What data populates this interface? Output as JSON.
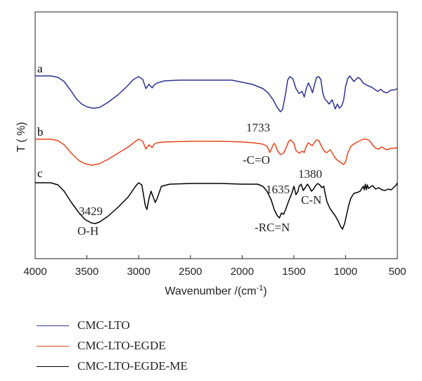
{
  "chart_data": {
    "type": "line",
    "title": "",
    "xlabel": "Wavenumber /(cm",
    "xlabel_sup": "-1",
    "xlabel_close": ")",
    "ylabel": "T ( %)",
    "xlim": [
      4000,
      500
    ],
    "x_reversed": true,
    "x_ticks": [
      4000,
      3500,
      3000,
      2500,
      2000,
      1500,
      1000,
      500
    ],
    "y_ticks_shown": false,
    "grid": false,
    "legend_position": "bottom-left",
    "series": [
      {
        "name": "CMC-LTO",
        "curve_label": "a",
        "color": "#2e3192",
        "baseline": 0,
        "points": [
          [
            4000,
            0
          ],
          [
            3850,
            0
          ],
          [
            3780,
            -2
          ],
          [
            3720,
            -8
          ],
          [
            3650,
            -22
          ],
          [
            3600,
            -33
          ],
          [
            3550,
            -40
          ],
          [
            3500,
            -44
          ],
          [
            3440,
            -46
          ],
          [
            3380,
            -45
          ],
          [
            3300,
            -38
          ],
          [
            3200,
            -27
          ],
          [
            3120,
            -16
          ],
          [
            3050,
            -5
          ],
          [
            3000,
            -1
          ],
          [
            2960,
            -5
          ],
          [
            2930,
            -18
          ],
          [
            2900,
            -12
          ],
          [
            2870,
            -17
          ],
          [
            2850,
            -13
          ],
          [
            2820,
            -10
          ],
          [
            2750,
            -7
          ],
          [
            2600,
            -6
          ],
          [
            2400,
            -6
          ],
          [
            2200,
            -6
          ],
          [
            2100,
            -6
          ],
          [
            2000,
            -9
          ],
          [
            1900,
            -12
          ],
          [
            1800,
            -18
          ],
          [
            1750,
            -24
          ],
          [
            1700,
            -34
          ],
          [
            1660,
            -45
          ],
          [
            1630,
            -51
          ],
          [
            1610,
            -48
          ],
          [
            1580,
            -25
          ],
          [
            1560,
            -6
          ],
          [
            1540,
            -1
          ],
          [
            1510,
            -4
          ],
          [
            1480,
            -18
          ],
          [
            1450,
            -25
          ],
          [
            1420,
            -22
          ],
          [
            1400,
            -30
          ],
          [
            1380,
            -18
          ],
          [
            1360,
            -10
          ],
          [
            1340,
            -16
          ],
          [
            1320,
            -24
          ],
          [
            1300,
            -12
          ],
          [
            1280,
            -2
          ],
          [
            1260,
            -1
          ],
          [
            1240,
            -5
          ],
          [
            1220,
            -25
          ],
          [
            1200,
            -33
          ],
          [
            1180,
            -36
          ],
          [
            1160,
            -40
          ],
          [
            1130,
            -34
          ],
          [
            1100,
            -47
          ],
          [
            1080,
            -40
          ],
          [
            1060,
            -46
          ],
          [
            1040,
            -43
          ],
          [
            1020,
            -35
          ],
          [
            1000,
            -15
          ],
          [
            980,
            -4
          ],
          [
            960,
            0
          ],
          [
            940,
            -4
          ],
          [
            920,
            -8
          ],
          [
            900,
            -5
          ],
          [
            880,
            -2
          ],
          [
            860,
            -4
          ],
          [
            830,
            -10
          ],
          [
            800,
            -13
          ],
          [
            750,
            -16
          ],
          [
            720,
            -19
          ],
          [
            690,
            -22
          ],
          [
            660,
            -19
          ],
          [
            630,
            -23
          ],
          [
            600,
            -24
          ],
          [
            560,
            -20
          ],
          [
            530,
            -20
          ],
          [
            500,
            -18
          ]
        ]
      },
      {
        "name": "CMC-LTO-EGDE",
        "curve_label": "b",
        "color": "#e2461c",
        "baseline": 0,
        "points": [
          [
            4000,
            0
          ],
          [
            3850,
            0
          ],
          [
            3780,
            -2
          ],
          [
            3720,
            -8
          ],
          [
            3650,
            -20
          ],
          [
            3580,
            -30
          ],
          [
            3520,
            -35
          ],
          [
            3450,
            -37
          ],
          [
            3380,
            -35
          ],
          [
            3300,
            -29
          ],
          [
            3200,
            -20
          ],
          [
            3100,
            -11
          ],
          [
            3030,
            -3
          ],
          [
            3000,
            0
          ],
          [
            2960,
            -3
          ],
          [
            2930,
            -14
          ],
          [
            2900,
            -8
          ],
          [
            2870,
            -12
          ],
          [
            2850,
            -7
          ],
          [
            2820,
            -5
          ],
          [
            2750,
            -4
          ],
          [
            2500,
            -3
          ],
          [
            2200,
            -3
          ],
          [
            2000,
            -4
          ],
          [
            1900,
            -5
          ],
          [
            1800,
            -7
          ],
          [
            1760,
            -10
          ],
          [
            1740,
            -16
          ],
          [
            1733,
            -19
          ],
          [
            1720,
            -15
          ],
          [
            1700,
            -8
          ],
          [
            1690,
            -6
          ],
          [
            1680,
            -8
          ],
          [
            1660,
            -16
          ],
          [
            1630,
            -22
          ],
          [
            1600,
            -20
          ],
          [
            1580,
            -14
          ],
          [
            1550,
            -3
          ],
          [
            1530,
            -1
          ],
          [
            1500,
            -6
          ],
          [
            1480,
            -16
          ],
          [
            1450,
            -20
          ],
          [
            1420,
            -17
          ],
          [
            1400,
            -19
          ],
          [
            1380,
            -10
          ],
          [
            1360,
            -5
          ],
          [
            1340,
            -8
          ],
          [
            1320,
            -9
          ],
          [
            1300,
            -4
          ],
          [
            1280,
            -1
          ],
          [
            1260,
            -2
          ],
          [
            1240,
            -8
          ],
          [
            1220,
            -14
          ],
          [
            1200,
            -18
          ],
          [
            1180,
            -19
          ],
          [
            1150,
            -15
          ],
          [
            1120,
            -22
          ],
          [
            1100,
            -27
          ],
          [
            1080,
            -30
          ],
          [
            1050,
            -33
          ],
          [
            1020,
            -36
          ],
          [
            1000,
            -32
          ],
          [
            980,
            -20
          ],
          [
            950,
            -10
          ],
          [
            900,
            -5
          ],
          [
            860,
            -2
          ],
          [
            830,
            0
          ],
          [
            800,
            0
          ],
          [
            770,
            -2
          ],
          [
            740,
            -8
          ],
          [
            710,
            -13
          ],
          [
            680,
            -14
          ],
          [
            650,
            -11
          ],
          [
            620,
            -14
          ],
          [
            600,
            -15
          ],
          [
            560,
            -13
          ],
          [
            530,
            -13
          ],
          [
            500,
            -12
          ]
        ]
      },
      {
        "name": "CMC-LTO-EGDE-ME",
        "curve_label": "c",
        "color": "#000000",
        "baseline": 0,
        "points": [
          [
            4000,
            0
          ],
          [
            3850,
            0
          ],
          [
            3780,
            -3
          ],
          [
            3720,
            -12
          ],
          [
            3650,
            -28
          ],
          [
            3580,
            -42
          ],
          [
            3520,
            -52
          ],
          [
            3460,
            -57
          ],
          [
            3420,
            -58
          ],
          [
            3380,
            -56
          ],
          [
            3300,
            -48
          ],
          [
            3200,
            -35
          ],
          [
            3100,
            -20
          ],
          [
            3030,
            -5
          ],
          [
            3000,
            0
          ],
          [
            2970,
            -3
          ],
          [
            2950,
            -20
          ],
          [
            2935,
            -33
          ],
          [
            2920,
            -38
          ],
          [
            2900,
            -22
          ],
          [
            2880,
            -12
          ],
          [
            2860,
            -20
          ],
          [
            2840,
            -28
          ],
          [
            2820,
            -22
          ],
          [
            2780,
            -5
          ],
          [
            2700,
            -2
          ],
          [
            2500,
            -1
          ],
          [
            2200,
            -1
          ],
          [
            2000,
            -2
          ],
          [
            1850,
            -2
          ],
          [
            1800,
            -5
          ],
          [
            1760,
            -12
          ],
          [
            1720,
            -24
          ],
          [
            1690,
            -38
          ],
          [
            1660,
            -47
          ],
          [
            1640,
            -50
          ],
          [
            1620,
            -43
          ],
          [
            1600,
            -45
          ],
          [
            1580,
            -38
          ],
          [
            1560,
            -30
          ],
          [
            1540,
            -22
          ],
          [
            1520,
            -15
          ],
          [
            1500,
            -5
          ],
          [
            1480,
            -17
          ],
          [
            1460,
            -12
          ],
          [
            1450,
            -5
          ],
          [
            1430,
            -2
          ],
          [
            1410,
            -11
          ],
          [
            1390,
            -7
          ],
          [
            1370,
            -2
          ],
          [
            1350,
            -6
          ],
          [
            1330,
            -12
          ],
          [
            1310,
            -9
          ],
          [
            1290,
            -4
          ],
          [
            1270,
            -1
          ],
          [
            1250,
            -3
          ],
          [
            1230,
            -7
          ],
          [
            1210,
            -5
          ],
          [
            1200,
            -14
          ],
          [
            1180,
            -27
          ],
          [
            1150,
            -37
          ],
          [
            1120,
            -43
          ],
          [
            1100,
            -47
          ],
          [
            1070,
            -55
          ],
          [
            1050,
            -62
          ],
          [
            1030,
            -66
          ],
          [
            1010,
            -58
          ],
          [
            990,
            -45
          ],
          [
            970,
            -32
          ],
          [
            950,
            -22
          ],
          [
            920,
            -15
          ],
          [
            890,
            -14
          ],
          [
            860,
            -12
          ],
          [
            830,
            -5
          ],
          [
            820,
            -10
          ],
          [
            810,
            -2
          ],
          [
            800,
            -10
          ],
          [
            790,
            -3
          ],
          [
            780,
            -8
          ],
          [
            760,
            -6
          ],
          [
            740,
            -4
          ],
          [
            710,
            -9
          ],
          [
            680,
            -7
          ],
          [
            650,
            -10
          ],
          [
            620,
            -11
          ],
          [
            590,
            -9
          ],
          [
            560,
            -10
          ],
          [
            530,
            -6
          ],
          [
            510,
            -3
          ],
          [
            500,
            0
          ]
        ]
      }
    ],
    "annotations": [
      {
        "text": "1733",
        "series": "CMC-LTO-EGDE"
      },
      {
        "text": "-C=O",
        "series": "CMC-LTO-EGDE"
      },
      {
        "text": "3429",
        "series": "CMC-LTO-EGDE-ME"
      },
      {
        "text": "O-H",
        "series": "CMC-LTO-EGDE-ME"
      },
      {
        "text": "1635",
        "series": "CMC-LTO-EGDE-ME"
      },
      {
        "text": "-RC=N",
        "series": "CMC-LTO-EGDE-ME"
      },
      {
        "text": "1380",
        "series": "CMC-LTO-EGDE-ME"
      },
      {
        "text": "C-N",
        "series": "CMC-LTO-EGDE-ME"
      }
    ]
  }
}
